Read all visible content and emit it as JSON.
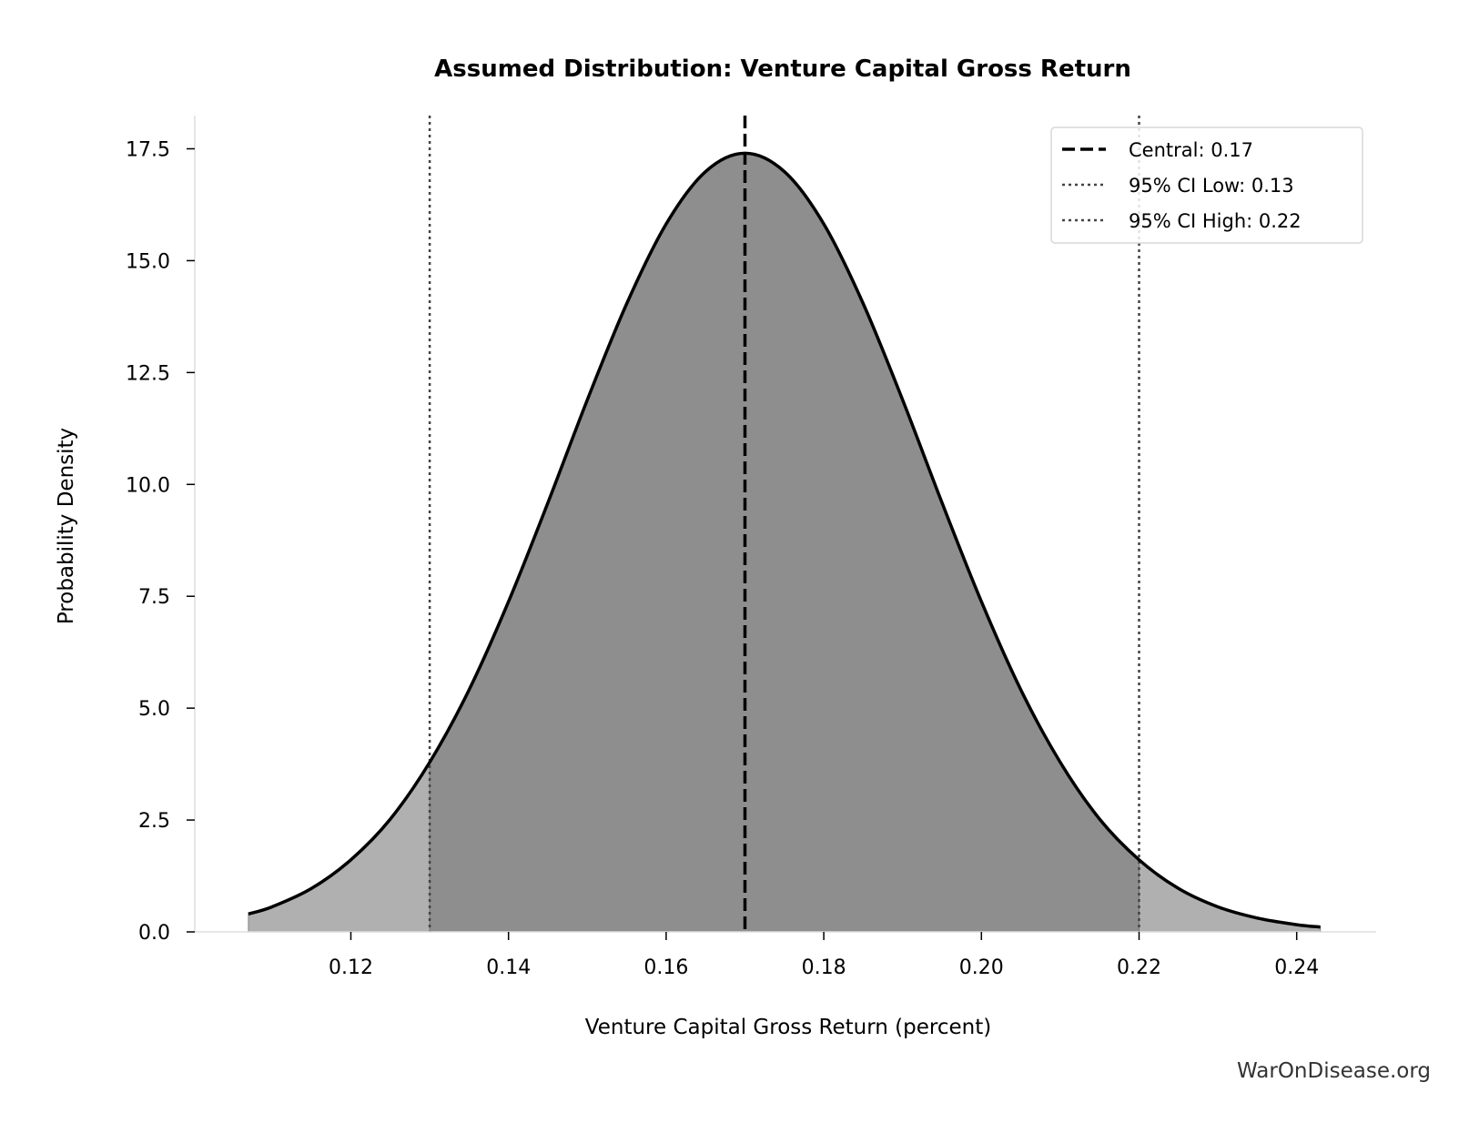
{
  "chart_data": {
    "type": "area",
    "title": "Assumed Distribution: Venture Capital Gross Return",
    "xlabel": "Venture Capital Gross Return (percent)",
    "ylabel": "Probability Density",
    "xlim": [
      0.1,
      0.25
    ],
    "ylim": [
      0,
      18.2
    ],
    "xticks": [
      0.12,
      0.14,
      0.16,
      0.18,
      0.2,
      0.22,
      0.24
    ],
    "xtick_labels": [
      "0.12",
      "0.14",
      "0.16",
      "0.18",
      "0.20",
      "0.22",
      "0.24"
    ],
    "yticks": [
      0,
      2.5,
      5,
      7.5,
      10,
      12.5,
      15,
      17.5
    ],
    "ytick_labels": [
      "0.0",
      "2.5",
      "5.0",
      "7.5",
      "10.0",
      "12.5",
      "15.0",
      "17.5"
    ],
    "grid": false,
    "legend_position": "top-right",
    "series": {
      "x": [
        0.107,
        0.11,
        0.115,
        0.12,
        0.125,
        0.13,
        0.135,
        0.14,
        0.145,
        0.15,
        0.155,
        0.16,
        0.165,
        0.17,
        0.175,
        0.18,
        0.185,
        0.19,
        0.195,
        0.2,
        0.205,
        0.21,
        0.215,
        0.22,
        0.225,
        0.23,
        0.235,
        0.24,
        0.243
      ],
      "y": [
        0.4,
        0.56,
        0.97,
        1.61,
        2.52,
        3.79,
        5.41,
        7.38,
        9.59,
        11.89,
        14.04,
        15.82,
        16.99,
        17.4,
        16.99,
        15.82,
        14.04,
        11.89,
        9.59,
        7.38,
        5.41,
        3.79,
        2.52,
        1.61,
        0.97,
        0.56,
        0.31,
        0.16,
        0.11
      ]
    },
    "shaded_interval": [
      0.13,
      0.22
    ],
    "reference_lines": [
      {
        "label": "Central: 0.17",
        "x": 0.17,
        "style": "dashed"
      },
      {
        "label": "95% CI Low: 0.13",
        "x": 0.13,
        "style": "dotted"
      },
      {
        "label": "95% CI High: 0.22",
        "x": 0.22,
        "style": "dotted"
      }
    ],
    "colors": {
      "curve": "#000000",
      "tail_fill": "#b0b0b0",
      "ci_fill": "#8e8e8e",
      "ci_line": "#444444",
      "spine": "#dddddd"
    }
  },
  "watermark": "WarOnDisease.org"
}
